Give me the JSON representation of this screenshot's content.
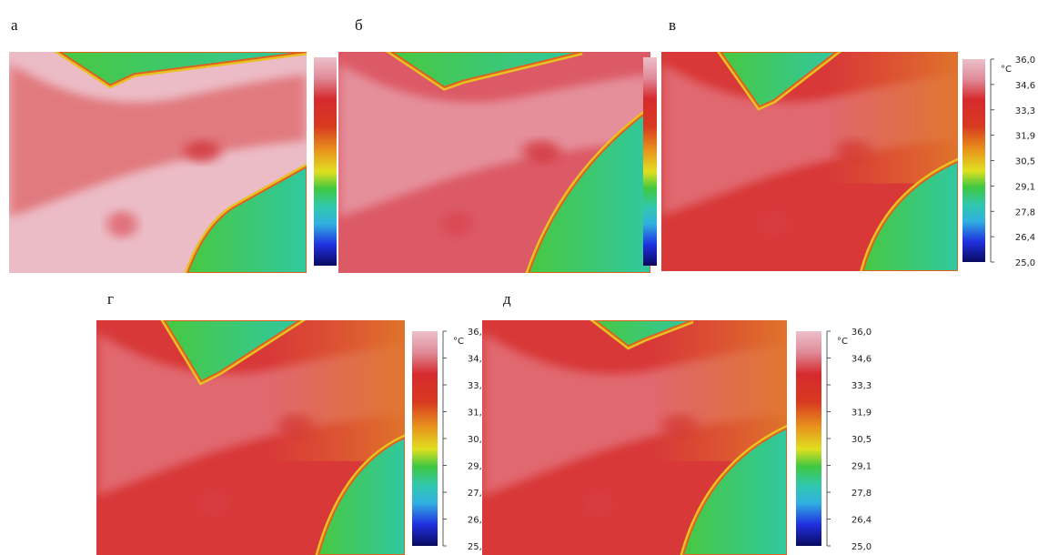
{
  "panels": [
    {
      "label": "а"
    },
    {
      "label": "б"
    },
    {
      "label": "в"
    },
    {
      "label": "г"
    },
    {
      "label": "д"
    }
  ],
  "colorbar": {
    "unit": "°C",
    "ticks": [
      "36,0",
      "34,6",
      "33,3",
      "31,9",
      "30,5",
      "29,1",
      "27,8",
      "26,4",
      "25,0"
    ]
  }
}
